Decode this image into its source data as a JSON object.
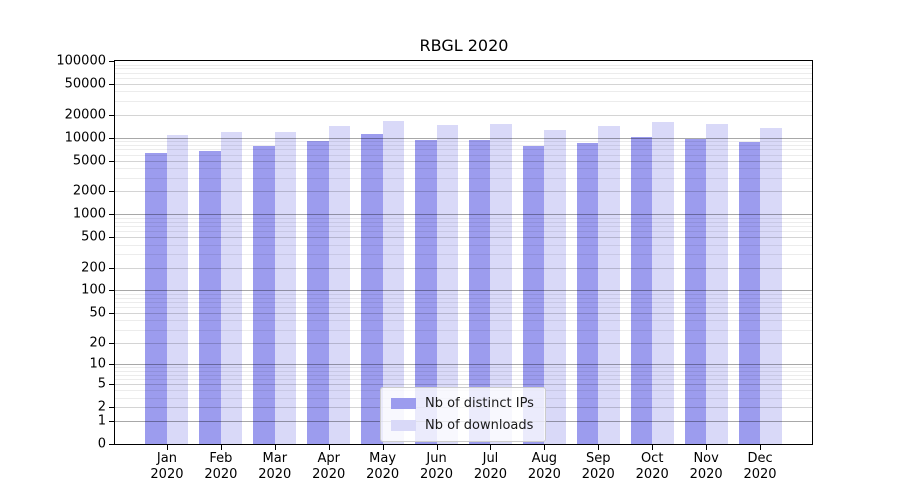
{
  "chart_data": {
    "type": "bar",
    "title": "RBGL 2020",
    "categories": [
      "Jan",
      "Feb",
      "Mar",
      "Apr",
      "May",
      "Jun",
      "Jul",
      "Aug",
      "Sep",
      "Oct",
      "Nov",
      "Dec"
    ],
    "category_year": "2020",
    "series": [
      {
        "name": "Nb of distinct IPs",
        "color": "#9c9cee",
        "values": [
          6300,
          6600,
          7700,
          9000,
          11300,
          9200,
          9200,
          7800,
          8600,
          10100,
          9500,
          8700
        ]
      },
      {
        "name": "Nb of downloads",
        "color": "#d9d9f8",
        "values": [
          10800,
          11900,
          11700,
          14000,
          16300,
          14500,
          14900,
          12600,
          14100,
          16100,
          14900,
          13500
        ]
      }
    ],
    "y_axis": {
      "scale": "log1p",
      "ylim": [
        0,
        100000
      ],
      "ticks": [
        0,
        1,
        2,
        5,
        10,
        20,
        50,
        100,
        200,
        500,
        1000,
        2000,
        5000,
        10000,
        20000,
        50000,
        100000
      ],
      "decade_ticks": [
        1,
        10,
        100,
        1000,
        10000,
        100000
      ]
    },
    "grid": true,
    "legend_position": "lower center"
  }
}
